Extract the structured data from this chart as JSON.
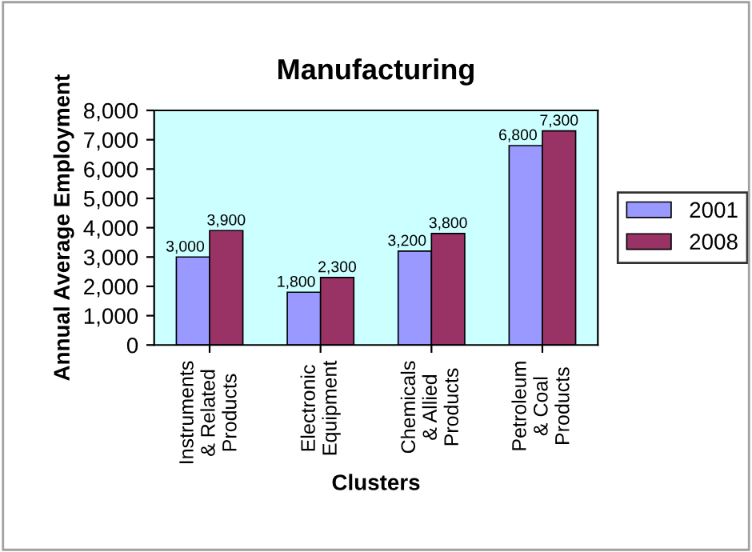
{
  "chart_data": {
    "type": "bar",
    "title": "Manufacturing",
    "xlabel": "Clusters",
    "ylabel": "Annual Average Employment",
    "categories": [
      "Instruments\n& Related\nProducts",
      "Electronic\nEquipment",
      "Chemicals\n& Allied\nProducts",
      "Petroleum\n& Coal\nProducts"
    ],
    "series": [
      {
        "name": "2001",
        "color": "#9999ff",
        "values": [
          3000,
          1800,
          3200,
          6800
        ],
        "value_labels": [
          "3,000",
          "1,800",
          "3,200",
          "6,800"
        ]
      },
      {
        "name": "2008",
        "color": "#993366",
        "values": [
          3900,
          2300,
          3800,
          7300
        ],
        "value_labels": [
          "3,900",
          "2,300",
          "3,800",
          "7,300"
        ]
      }
    ],
    "ylim": [
      0,
      8000
    ],
    "yticks": [
      0,
      {
        "value": 1000,
        "label": "1,000"
      },
      {
        "value": 2000,
        "label": "2,000"
      },
      {
        "value": 3000,
        "label": "3,000"
      },
      {
        "value": 4000,
        "label": "4,000"
      },
      {
        "value": 5000,
        "label": "5,000"
      },
      {
        "value": 6000,
        "label": "6,000"
      },
      {
        "value": 7000,
        "label": "7,000"
      },
      {
        "value": 8000,
        "label": "8,000"
      }
    ],
    "legend": "right",
    "grid": false
  }
}
